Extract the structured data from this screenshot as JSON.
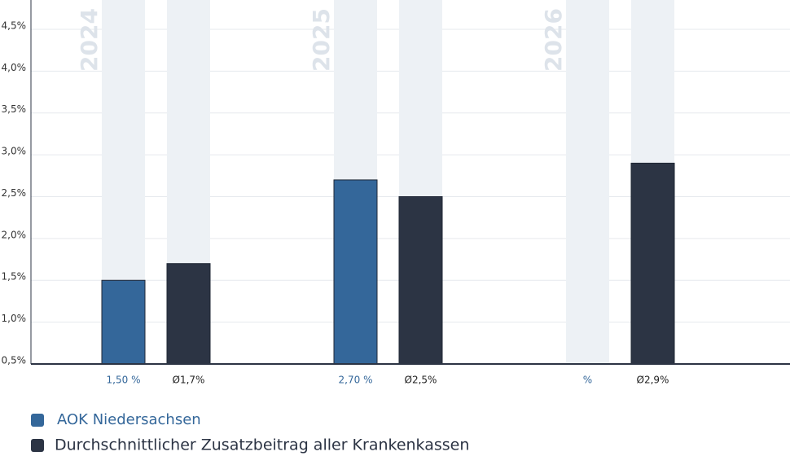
{
  "chart_data": {
    "type": "bar",
    "categories": [
      "2024",
      "2025",
      "2026"
    ],
    "series": [
      {
        "name": "AOK Niedersachsen",
        "color": "#34679a",
        "values": [
          1.5,
          2.7,
          null
        ],
        "value_labels": [
          "1,50 %",
          "2,70 %",
          "%"
        ]
      },
      {
        "name": "Durchschnittlicher Zusatzbeitrag aller Krankenkassen",
        "color": "#2c3444",
        "values": [
          1.7,
          2.5,
          2.9
        ],
        "value_labels": [
          "Ø1,7%",
          "Ø2,5%",
          "Ø2,9%"
        ]
      }
    ],
    "ylim": [
      0.5,
      4.85
    ],
    "yticks": [
      {
        "value": 0.5,
        "label": "0,5%"
      },
      {
        "value": 1.0,
        "label": "1,0%"
      },
      {
        "value": 1.5,
        "label": "1,5%"
      },
      {
        "value": 2.0,
        "label": "2,0%"
      },
      {
        "value": 2.5,
        "label": "2,5%"
      },
      {
        "value": 3.0,
        "label": "3,0%"
      },
      {
        "value": 3.5,
        "label": "3,5%"
      },
      {
        "value": 4.0,
        "label": "4,0%"
      },
      {
        "value": 4.5,
        "label": "4,5%"
      }
    ],
    "grid": true
  }
}
